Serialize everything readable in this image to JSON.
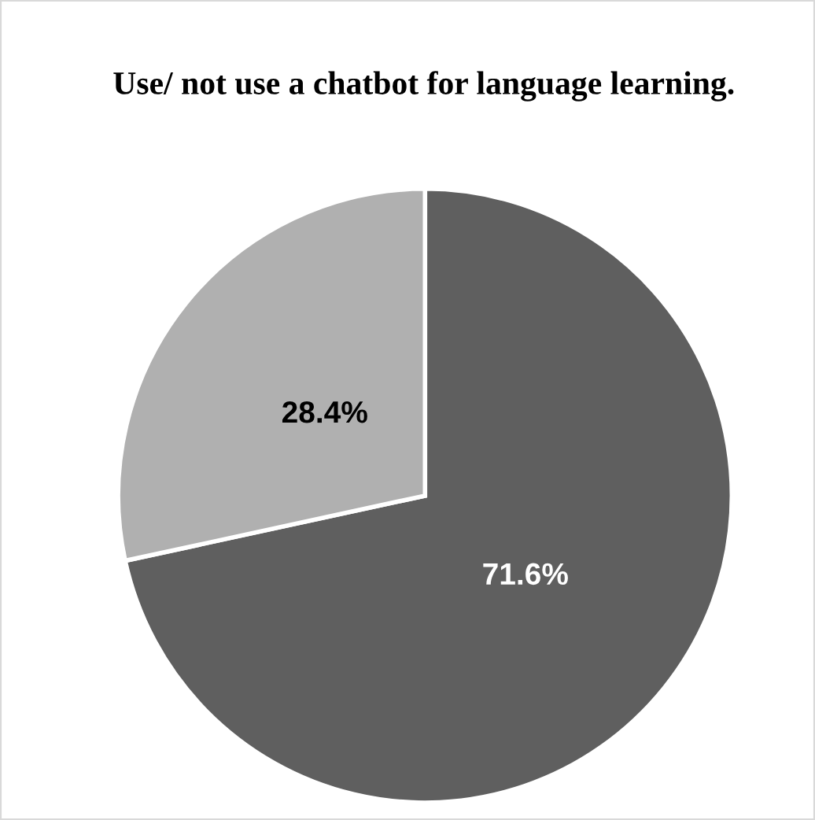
{
  "chart_data": {
    "type": "pie",
    "title": "Use/ not use a chatbot for language learning.",
    "categories": [
      null,
      null
    ],
    "values": [
      71.6,
      28.4
    ],
    "colors": [
      "#5f5f5f",
      "#b0b0b0"
    ],
    "value_labels": [
      "71.6%",
      "28.4%"
    ],
    "legend": false
  }
}
